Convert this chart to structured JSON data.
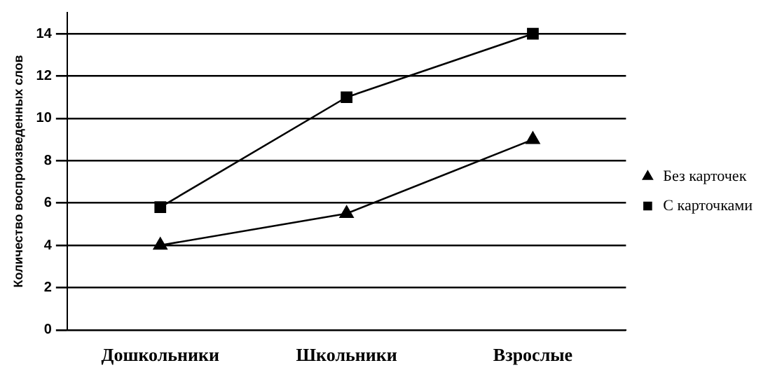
{
  "chart_data": {
    "type": "line",
    "ylabel": "Количество воспроизведенных слов",
    "categories": [
      "Дошкольники",
      "Школьники",
      "Взрослые"
    ],
    "series": [
      {
        "name": "Без карточек",
        "color": "#000000",
        "marker": "triangle",
        "values": [
          4,
          5.5,
          9
        ]
      },
      {
        "name": "С карточками",
        "color": "#000000",
        "marker": "square",
        "values": [
          5.8,
          11,
          14
        ]
      }
    ],
    "ylim": [
      0,
      15
    ],
    "yticks": [
      0,
      2,
      4,
      6,
      8,
      10,
      12,
      14
    ],
    "grid": "y",
    "legend": "right",
    "line_style": "solid"
  }
}
